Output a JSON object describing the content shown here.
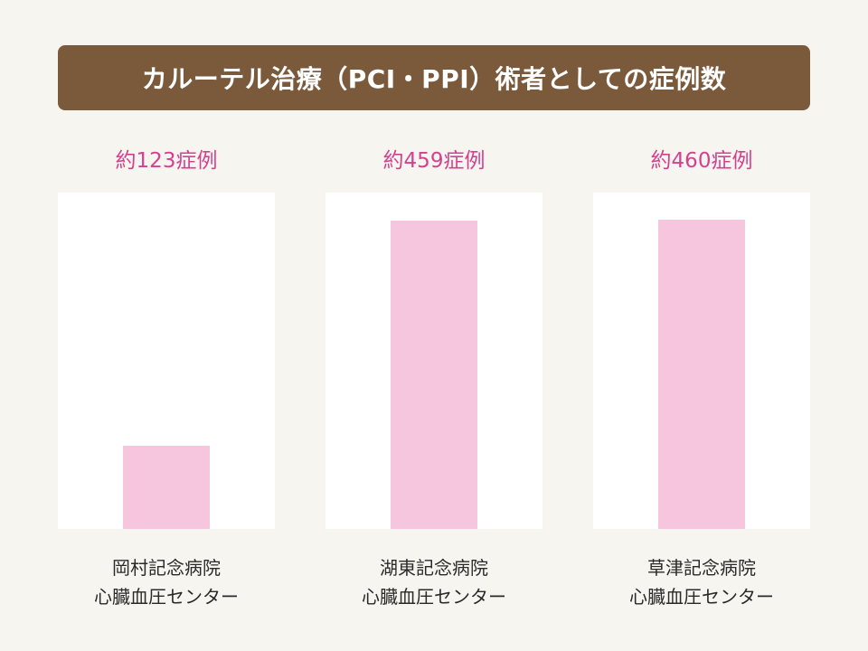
{
  "chart_data": {
    "type": "bar",
    "title": "カルーテル治療（PCI・PPI）術者としての症例数",
    "categories": [
      [
        "岡村記念病院",
        "心臓血圧センター"
      ],
      [
        "湖東記念病院",
        "心臓血圧センター"
      ],
      [
        "草津記念病院",
        "心臓血圧センター"
      ]
    ],
    "values": [
      123,
      459,
      460
    ],
    "value_labels": [
      "約123症例",
      "約459症例",
      "約460症例"
    ],
    "ylim": [
      0,
      500
    ],
    "grid": false,
    "legend": "none",
    "colors": {
      "bar": "#f5c6dd",
      "value_label": "#d6418e",
      "title_bg": "#7b5a3c",
      "panel_bg": "#ffffff",
      "page_bg": "#f6f5f0"
    }
  }
}
